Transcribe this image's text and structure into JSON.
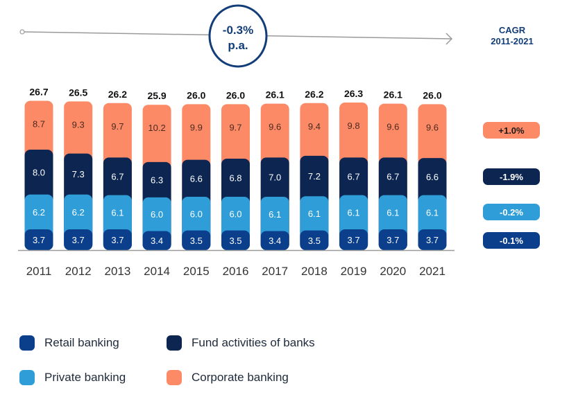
{
  "chart_data": {
    "type": "bar",
    "stacked": true,
    "categories": [
      "2011",
      "2012",
      "2013",
      "2014",
      "2015",
      "2016",
      "2017",
      "2018",
      "2019",
      "2020",
      "2021"
    ],
    "series": [
      {
        "name": "Retail banking",
        "color": "#0b3f8c",
        "values": [
          3.7,
          3.7,
          3.7,
          3.4,
          3.5,
          3.5,
          3.4,
          3.5,
          3.7,
          3.7,
          3.7
        ],
        "cagr": "-0.1%"
      },
      {
        "name": "Private banking",
        "color": "#2f9dd8",
        "values": [
          6.2,
          6.2,
          6.1,
          6.0,
          6.0,
          6.0,
          6.1,
          6.1,
          6.1,
          6.1,
          6.1
        ],
        "cagr": "-0.2%"
      },
      {
        "name": "Fund activities of banks",
        "color": "#0c2651",
        "values": [
          8.0,
          7.3,
          6.7,
          6.3,
          6.6,
          6.8,
          7.0,
          7.2,
          6.7,
          6.7,
          6.6
        ],
        "cagr": "-1.9%"
      },
      {
        "name": "Corporate banking",
        "color": "#fd8a66",
        "values": [
          8.7,
          9.3,
          9.7,
          10.2,
          9.9,
          9.7,
          9.6,
          9.4,
          9.8,
          9.6,
          9.6
        ],
        "cagr": "+1.0%"
      }
    ],
    "totals": [
      "26.7",
      "26.5",
      "26.2",
      "25.9",
      "26.0",
      "26.0",
      "26.1",
      "26.2",
      "26.3",
      "26.1",
      "26.0"
    ],
    "total_cagr": {
      "line1": "-0.3%",
      "line2": "p.a."
    },
    "cagr_label": {
      "line1": "CAGR",
      "line2": "2011-2021"
    },
    "legend_placement": "bottom",
    "grid": false
  }
}
